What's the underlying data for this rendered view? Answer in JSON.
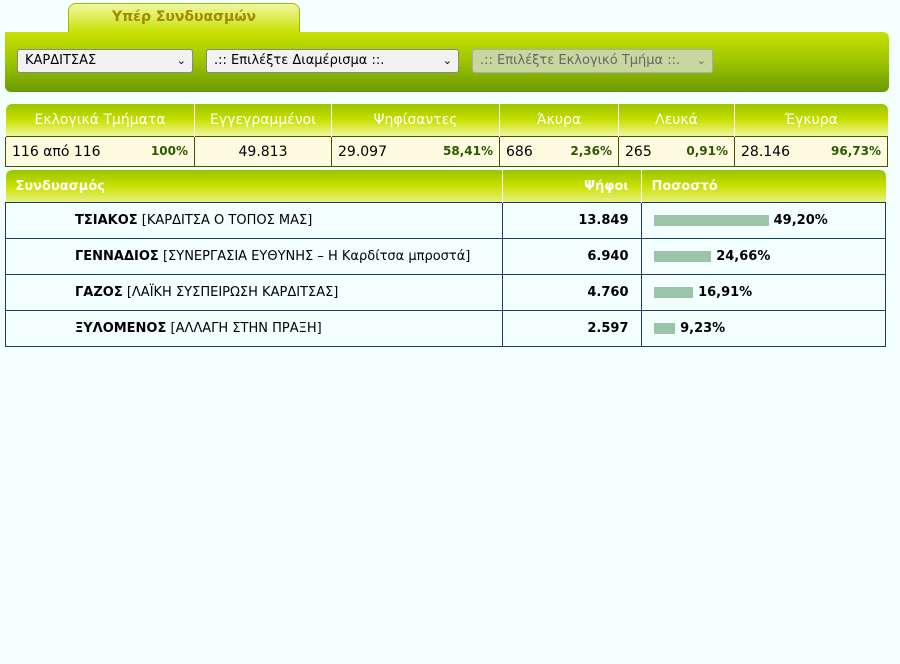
{
  "tab": "Υπέρ Συνδυασμών",
  "filters": [
    "ΚΑΡΔΙΤΣΑΣ",
    ".:: Επιλέξτε Διαμέρισμα ::.",
    ".:: Επιλέξτε Εκλογικό Τμήμα ::."
  ],
  "summary": {
    "headers": [
      "Εκλογικά Τμήματα",
      "Εγγεγραμμένοι",
      "Ψηφίσαντες",
      "Άκυρα",
      "Λευκά",
      "Έγκυρα"
    ],
    "values": [
      {
        "main": "116 από 116",
        "pct": "100%"
      },
      {
        "main": "49.813"
      },
      {
        "main": "29.097",
        "pct": "58,41%"
      },
      {
        "main": "686",
        "pct": "2,36%"
      },
      {
        "main": "265",
        "pct": "0,91%"
      },
      {
        "main": "28.146",
        "pct": "96,73%"
      }
    ]
  },
  "results": {
    "headers": [
      "Συνδυασμός",
      "Ψήφοι",
      "Ποσοστό"
    ],
    "rows": [
      {
        "name": "ΤΣΙΑΚΟΣ",
        "party": "[ΚΑΡΔΙΤΣΑ Ο ΤΟΠΟΣ ΜΑΣ]",
        "votes": "13.849",
        "percent": 49.2,
        "percent_label": "49,20%"
      },
      {
        "name": "ΓΕΝΝΑΔΙΟΣ",
        "party": "[ΣΥΝΕΡΓΑΣΙΑ ΕΥΘΥΝΗΣ – Η Καρδίτσα μπροστά]",
        "votes": "6.940",
        "percent": 24.66,
        "percent_label": "24,66%"
      },
      {
        "name": "ΓΑΖΟΣ",
        "party": "[ΛΑΪΚΗ ΣΥΣΠΕΙΡΩΣΗ ΚΑΡΔΙΤΣΑΣ]",
        "votes": "4.760",
        "percent": 16.91,
        "percent_label": "16,91%"
      },
      {
        "name": "ΞΥΛΟΜΕΝΟΣ",
        "party": "[ΑΛΛΑΓΗ ΣΤΗΝ ΠΡΑΞΗ]",
        "votes": "2.597",
        "percent": 9.23,
        "percent_label": "9,23%"
      }
    ]
  }
}
